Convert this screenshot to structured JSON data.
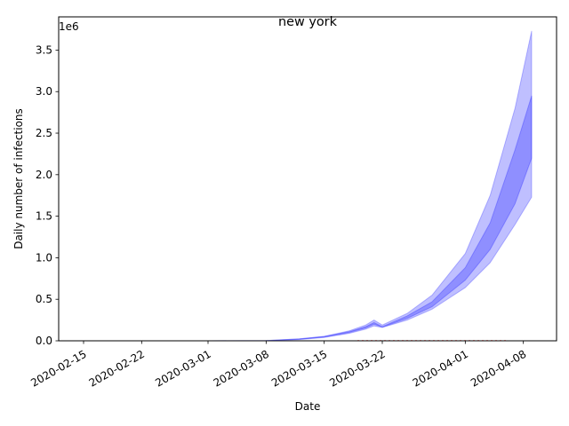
{
  "chart_data": {
    "type": "area",
    "title": "new york",
    "xlabel": "Date",
    "ylabel": "Daily number of infections",
    "y_scale_label": "1e6",
    "y_multiplier": 1000000,
    "xlim": [
      "2020-02-12",
      "2020-04-12"
    ],
    "ylim": [
      0,
      3.9
    ],
    "x_ticks": [
      "2020-02-15",
      "2020-02-22",
      "2020-03-01",
      "2020-03-08",
      "2020-03-15",
      "2020-03-22",
      "2020-04-01",
      "2020-04-08"
    ],
    "y_ticks": [
      0.0,
      0.5,
      1.0,
      1.5,
      2.0,
      2.5,
      3.0,
      3.5
    ],
    "y_tick_labels": [
      "0.0",
      "0.5",
      "1.0",
      "1.5",
      "2.0",
      "2.5",
      "3.0",
      "3.5"
    ],
    "grid": false,
    "colors": {
      "band": "#0000ff",
      "observed": "#ff0000"
    },
    "x": [
      "2020-02-15",
      "2020-03-01",
      "2020-03-08",
      "2020-03-12",
      "2020-03-15",
      "2020-03-18",
      "2020-03-20",
      "2020-03-21",
      "2020-03-22",
      "2020-03-25",
      "2020-03-28",
      "2020-04-01",
      "2020-04-04",
      "2020-04-07",
      "2020-04-09"
    ],
    "series": [
      {
        "role": "outer_upper",
        "values": [
          0,
          0,
          0.003,
          0.025,
          0.055,
          0.12,
          0.19,
          0.25,
          0.19,
          0.33,
          0.55,
          1.05,
          1.75,
          2.8,
          3.73
        ]
      },
      {
        "role": "inner_upper",
        "values": [
          0,
          0,
          0.002,
          0.022,
          0.05,
          0.11,
          0.17,
          0.22,
          0.17,
          0.3,
          0.47,
          0.88,
          1.42,
          2.3,
          2.95
        ]
      },
      {
        "role": "inner_lower",
        "values": [
          0,
          0,
          0.001,
          0.018,
          0.045,
          0.1,
          0.155,
          0.2,
          0.165,
          0.27,
          0.41,
          0.73,
          1.1,
          1.65,
          2.2
        ]
      },
      {
        "role": "outer_lower",
        "values": [
          0,
          0,
          0.001,
          0.015,
          0.04,
          0.09,
          0.14,
          0.18,
          0.16,
          0.25,
          0.38,
          0.64,
          0.94,
          1.4,
          1.73
        ]
      }
    ],
    "observed": {
      "x_range": [
        "2020-03-19",
        "2020-04-06"
      ],
      "values_note_hidden": true
    }
  }
}
